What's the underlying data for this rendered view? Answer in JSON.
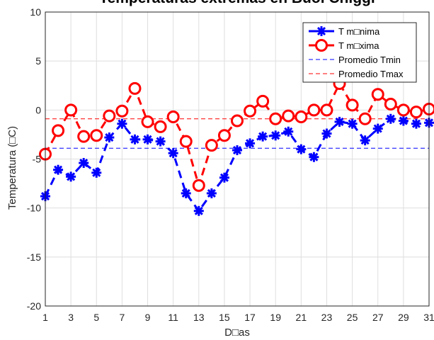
{
  "chart_data": {
    "type": "line",
    "title": "Temperaturas extremas en Buol Chiggi",
    "xlabel": "D□as",
    "ylabel": "Temperatura (□C)",
    "xlim": [
      1,
      31
    ],
    "ylim": [
      -20,
      10
    ],
    "xticks": [
      1,
      3,
      5,
      7,
      9,
      11,
      13,
      15,
      17,
      19,
      21,
      23,
      25,
      27,
      29,
      31
    ],
    "yticks": [
      -20,
      -15,
      -10,
      -5,
      0,
      5,
      10
    ],
    "grid": true,
    "legend_position": "top-right",
    "x": [
      1,
      2,
      3,
      4,
      5,
      6,
      7,
      8,
      9,
      10,
      11,
      12,
      13,
      14,
      15,
      16,
      17,
      18,
      19,
      20,
      21,
      22,
      23,
      24,
      25,
      26,
      27,
      28,
      29,
      30,
      31
    ],
    "series": [
      {
        "name": "T m□nima",
        "color": "#0000ff",
        "marker": "asterisk",
        "values": [
          -8.8,
          -6.1,
          -6.8,
          -5.4,
          -6.4,
          -2.8,
          -1.4,
          -3.0,
          -3.0,
          -3.2,
          -4.4,
          -8.5,
          -10.3,
          -8.5,
          -6.9,
          -4.1,
          -3.4,
          -2.7,
          -2.6,
          -2.2,
          -4.0,
          -4.8,
          -2.4,
          -1.2,
          -1.4,
          -3.1,
          -1.9,
          -0.9,
          -1.1,
          -1.4,
          -1.3
        ]
      },
      {
        "name": "T m□xima",
        "color": "#ff0000",
        "marker": "circle",
        "values": [
          -4.5,
          -2.1,
          0.0,
          -2.7,
          -2.6,
          -0.6,
          -0.1,
          2.2,
          -1.2,
          -1.7,
          -0.7,
          -3.2,
          -7.7,
          -3.6,
          -2.6,
          -1.1,
          -0.1,
          0.9,
          -0.9,
          -0.6,
          -0.7,
          0.0,
          0.0,
          2.7,
          0.5,
          -0.9,
          1.6,
          0.6,
          0.0,
          -0.2,
          0.1
        ]
      }
    ],
    "reference_lines": [
      {
        "name": "Promedio Tmin",
        "value": -3.9,
        "color": "#0000ff"
      },
      {
        "name": "Promedio Tmax",
        "value": -0.9,
        "color": "#ff0000"
      }
    ]
  }
}
